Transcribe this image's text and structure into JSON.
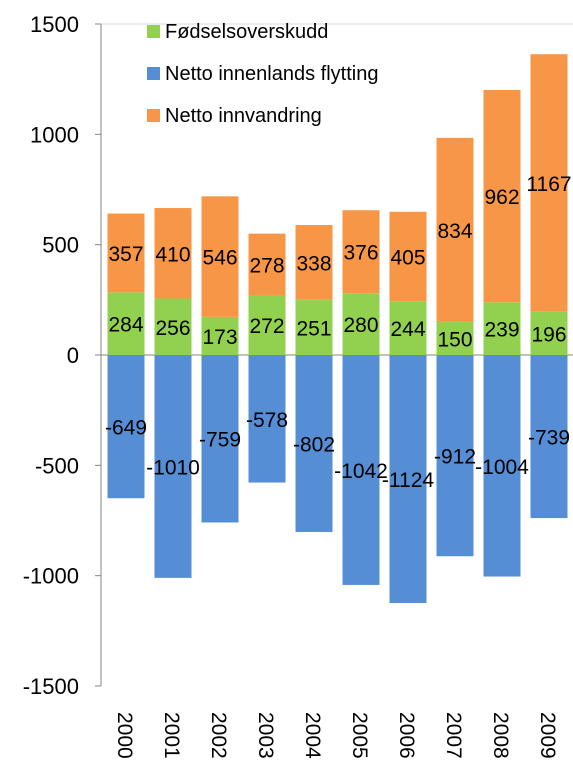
{
  "chart_data": {
    "type": "bar",
    "stacked": true,
    "categories": [
      "2000",
      "2001",
      "2002",
      "2003",
      "2004",
      "2005",
      "2006",
      "2007",
      "2008",
      "2009"
    ],
    "series": [
      {
        "name": "Fødselsoverskudd",
        "color": "#92D050",
        "values": [
          284,
          256,
          173,
          272,
          251,
          280,
          244,
          150,
          239,
          196
        ]
      },
      {
        "name": "Netto innenlands flytting",
        "color": "#558ED5",
        "values": [
          -649,
          -1010,
          -759,
          -578,
          -802,
          -1042,
          -1124,
          -912,
          -1004,
          -739
        ]
      },
      {
        "name": "Netto innvandring",
        "color": "#F79646",
        "values": [
          357,
          410,
          546,
          278,
          338,
          376,
          405,
          834,
          962,
          1167
        ]
      }
    ],
    "ylim": [
      -1500,
      1500
    ],
    "yticks": [
      -1500,
      -1000,
      -500,
      0,
      500,
      1000,
      1500
    ],
    "ytick_labels": [
      "-1500",
      "-1000",
      "-500",
      "0",
      "500",
      "1000",
      "1500"
    ],
    "legend_position": "top-left",
    "grid": false,
    "data_labels": true
  }
}
